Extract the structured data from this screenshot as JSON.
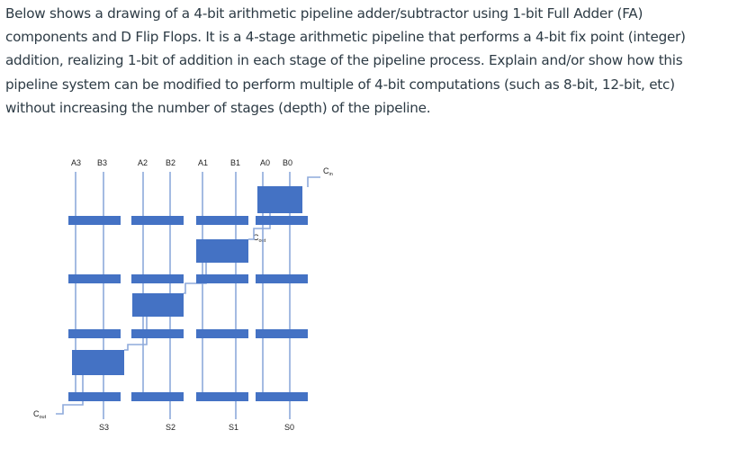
{
  "question": {
    "lines": [
      "Below shows a drawing of a 4-bit arithmetic pipeline adder/subtractor using 1-bit Full Adder (FA)",
      "components and D Flip Flops. It is a 4-stage arithmetic pipeline that performs a 4-bit fix point (integer)",
      "addition, realizing 1-bit of addition in each stage of the pipeline process. Explain and/or show how this",
      "pipeline system can be modified to perform multiple of 4-bit computations (such as 8-bit, 12-bit, etc)",
      "without increasing the number of stages (depth) of the pipeline."
    ]
  },
  "diagram": {
    "input_labels": [
      "A3",
      "B3",
      "A2",
      "B2",
      "A1",
      "B1",
      "A0",
      "B0"
    ],
    "output_labels": [
      "S3",
      "S2",
      "S1",
      "S0"
    ],
    "cin_label": {
      "main": "C",
      "sub": "in"
    },
    "cout_label": {
      "main": "C",
      "sub": "out"
    },
    "stage_carry_label": {
      "main": "C",
      "sub": "out"
    },
    "colors": {
      "block": "#4472c4",
      "wire": "#8eaadb",
      "label": "#222222"
    }
  }
}
